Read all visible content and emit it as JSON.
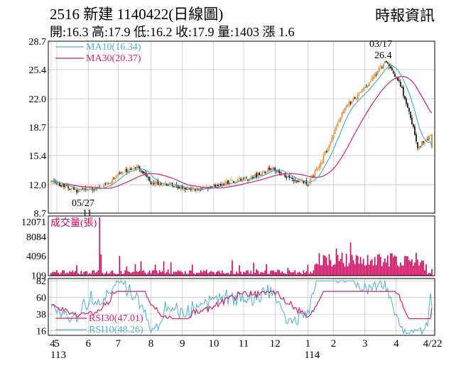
{
  "header": {
    "title": "2516  新建 1140422(日線圖)",
    "source": "時報資訊",
    "quote_line": "開:16.3 高:17.9 低:16.2 收:17.9 量:1403 漲 1.6"
  },
  "colors": {
    "ma10": "#4ab0cf",
    "ma30": "#d61f6a",
    "volume": "#d2005a",
    "up": "#e08a2c",
    "down": "#1a1a1a",
    "grid": "#b8b8b8"
  },
  "chart_data": [
    {
      "type": "candlestick",
      "panel": "price",
      "y_ticks": [
        "28.7",
        "25.4",
        "22.0",
        "18.7",
        "15.4",
        "12.0",
        "8.7"
      ],
      "ylim": [
        8.7,
        28.7
      ],
      "legend": [
        {
          "name": "MA10(16.34)",
          "color": "#4ab0cf"
        },
        {
          "name": "MA30(20.37)",
          "color": "#d61f6a"
        }
      ],
      "annotations": [
        {
          "label": "03/17",
          "value": "26.4",
          "kind": "high"
        },
        {
          "label": "05/27",
          "value": "11",
          "kind": "low"
        }
      ],
      "last": {
        "open": 16.3,
        "high": 17.9,
        "low": 16.2,
        "close": 17.9
      },
      "ma10_last": 16.34,
      "ma30_last": 20.37,
      "close_anchors": [
        [
          0,
          12.4
        ],
        [
          18,
          11.3
        ],
        [
          35,
          11.6
        ],
        [
          50,
          13.5
        ],
        [
          62,
          14.0
        ],
        [
          70,
          12.3
        ],
        [
          90,
          11.8
        ],
        [
          105,
          11.4
        ],
        [
          125,
          12.3
        ],
        [
          140,
          12.8
        ],
        [
          155,
          13.9
        ],
        [
          170,
          12.6
        ],
        [
          180,
          12.1
        ],
        [
          190,
          14.8
        ],
        [
          205,
          20.8
        ],
        [
          215,
          22.4
        ],
        [
          227,
          24.8
        ],
        [
          235,
          26.4
        ],
        [
          245,
          23.6
        ],
        [
          252,
          20.0
        ],
        [
          257,
          16.5
        ],
        [
          263,
          17.1
        ],
        [
          267,
          17.9
        ]
      ]
    },
    {
      "type": "bar",
      "panel": "volume",
      "series_name": "成交量(張)",
      "y_ticks": [
        "12071",
        "8084",
        "4096",
        "109"
      ],
      "ylim": [
        0,
        12071
      ],
      "last": 1403,
      "spikes": [
        [
          34,
          12071
        ],
        [
          35,
          4400
        ],
        [
          48,
          4096
        ],
        [
          200,
          5600
        ],
        [
          210,
          6900
        ],
        [
          230,
          4500
        ]
      ]
    },
    {
      "type": "line",
      "panel": "rsi",
      "y_ticks": [
        "82",
        "60",
        "38",
        "16"
      ],
      "ylim": [
        10,
        85
      ],
      "legend": [
        {
          "name": "RSI30(47.01)",
          "color": "#d61f6a"
        },
        {
          "name": "RSI10(48.26)",
          "color": "#4ab0cf"
        }
      ],
      "rsi30_last": 47.01,
      "rsi10_last": 48.26
    }
  ],
  "x_axis": {
    "ticks": [
      {
        "label": "4",
        "index": 0
      },
      {
        "label": "5",
        "index": 4
      },
      {
        "label": "6",
        "index": 26
      },
      {
        "label": "7",
        "index": 47
      },
      {
        "label": "8",
        "index": 70
      },
      {
        "label": "9",
        "index": 92
      },
      {
        "label": "10",
        "index": 114
      },
      {
        "label": "11",
        "index": 135
      },
      {
        "label": "12",
        "index": 157
      },
      {
        "label": "1",
        "index": 180
      },
      {
        "label": "2",
        "index": 198
      },
      {
        "label": "3",
        "index": 220
      },
      {
        "label": "4",
        "index": 242
      },
      {
        "label": "4/22",
        "index": 267
      }
    ],
    "year_labels": [
      {
        "label": "113",
        "index": 0
      },
      {
        "label": "114",
        "index": 180
      }
    ]
  }
}
